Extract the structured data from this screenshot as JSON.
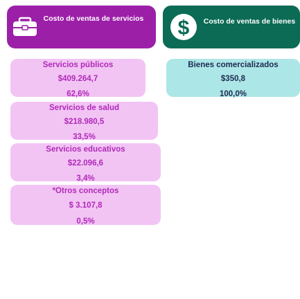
{
  "headers": [
    {
      "title": "Costo de ventas de servicios"
    },
    {
      "title": "Costo de ventas de bienes"
    }
  ],
  "services": [
    {
      "label": "Servicios públicos",
      "amount": "$409.264,7",
      "share": "62,6%"
    },
    {
      "label": "Servicios de salud",
      "amount": "$218.980,5",
      "share": "33,5%"
    },
    {
      "label": "Servicios educativos",
      "amount": "$22.096,6",
      "share": "3,4%"
    },
    {
      "label": "*Otros conceptos",
      "amount": "$ 3.107,8",
      "share": "0,5%"
    }
  ],
  "goods": [
    {
      "label": "Bienes comercializados",
      "amount": "$350,8",
      "share": "100,0%"
    }
  ]
}
